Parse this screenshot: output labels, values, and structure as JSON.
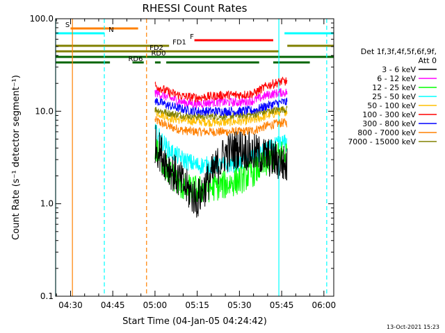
{
  "chart_data": {
    "type": "line",
    "title": "RHESSI Count Rates",
    "xlabel": "Start Time (04-Jan-05 04:24:42)",
    "ylabel": "Count Rate (s⁻¹ detector segment⁻¹)",
    "y_scale": "log",
    "ylim": [
      0.1,
      100.0
    ],
    "xlim": [
      "04:24:42",
      "06:03:30"
    ],
    "x_ticks": [
      "04:30",
      "04:45",
      "05:00",
      "05:15",
      "05:30",
      "05:45",
      "06:00"
    ],
    "y_ticks": [
      "0.1",
      "1.0",
      "10.0",
      "100.0"
    ],
    "grid": false,
    "legend_position": "right",
    "legend_header": [
      "Det 1f,3f,4f,5f,6f,9f,",
      "Att 0"
    ],
    "timestamp": "13-Oct-2021 15:23",
    "series": [
      {
        "name": "3 - 6 keV",
        "color": "#000000",
        "x": [
          "05:00",
          "05:05",
          "05:10",
          "05:15",
          "05:20",
          "05:25",
          "05:30",
          "05:35",
          "05:40",
          "05:45",
          "05:47"
        ],
        "values": [
          4.5,
          2.5,
          1.6,
          1.1,
          2.0,
          3.5,
          4.0,
          3.5,
          3.2,
          2.8,
          2.5
        ]
      },
      {
        "name": "6 - 12 keV",
        "color": "#ff00ff",
        "x": [
          "05:00",
          "05:05",
          "05:10",
          "05:15",
          "05:20",
          "05:25",
          "05:30",
          "05:35",
          "05:40",
          "05:45",
          "05:47"
        ],
        "values": [
          16,
          14,
          12.5,
          12,
          12.5,
          12.5,
          12.5,
          13,
          15,
          16,
          16
        ]
      },
      {
        "name": "12 - 25 keV",
        "color": "#00ff00",
        "x": [
          "05:00",
          "05:05",
          "05:10",
          "05:15",
          "05:20",
          "05:25",
          "05:30",
          "05:35",
          "05:40",
          "05:45",
          "05:47"
        ],
        "values": [
          4.0,
          2.2,
          1.5,
          1.4,
          1.5,
          1.6,
          1.8,
          2.2,
          2.8,
          3.5,
          3.6
        ]
      },
      {
        "name": "25 - 50 keV",
        "color": "#00ffff",
        "x": [
          "05:00",
          "05:05",
          "05:10",
          "05:15",
          "05:20",
          "05:25",
          "05:30",
          "05:35",
          "05:40",
          "05:45",
          "05:47"
        ],
        "values": [
          6.0,
          3.8,
          3.0,
          2.6,
          2.6,
          2.6,
          2.8,
          3.2,
          3.8,
          4.5,
          4.5
        ]
      },
      {
        "name": "50 - 100 keV",
        "color": "#ffbf00",
        "x": [
          "05:00",
          "05:05",
          "05:10",
          "05:15",
          "05:20",
          "05:25",
          "05:30",
          "05:35",
          "05:40",
          "05:45",
          "05:47"
        ],
        "values": [
          10,
          8.5,
          8.0,
          7.8,
          7.6,
          7.6,
          7.8,
          8.0,
          9.0,
          10,
          10
        ]
      },
      {
        "name": "100 - 300 keV",
        "color": "#ff0000",
        "x": [
          "05:00",
          "05:05",
          "05:10",
          "05:15",
          "05:20",
          "05:25",
          "05:30",
          "05:35",
          "05:40",
          "05:45",
          "05:47"
        ],
        "values": [
          19,
          16,
          14.5,
          14,
          14.5,
          15,
          15,
          15.5,
          19,
          21,
          21
        ]
      },
      {
        "name": "300 - 800 keV",
        "color": "#0000ff",
        "x": [
          "05:00",
          "05:05",
          "05:10",
          "05:15",
          "05:20",
          "05:25",
          "05:30",
          "05:35",
          "05:40",
          "05:45",
          "05:47"
        ],
        "values": [
          13,
          11.5,
          10.5,
          10,
          10,
          10,
          10,
          10.2,
          11.5,
          12.5,
          12.5
        ]
      },
      {
        "name": "800 - 7000 keV",
        "color": "#ff8000",
        "x": [
          "05:00",
          "05:05",
          "05:10",
          "05:15",
          "05:20",
          "05:25",
          "05:30",
          "05:35",
          "05:40",
          "05:45",
          "05:47"
        ],
        "values": [
          8.0,
          6.8,
          6.2,
          6.0,
          6.0,
          6.0,
          6.0,
          6.2,
          7.0,
          7.5,
          7.5
        ]
      },
      {
        "name": "7000 - 15000 keV",
        "color": "#808000",
        "x": [
          "05:00",
          "05:05",
          "05:10",
          "05:15",
          "05:20",
          "05:25",
          "05:30",
          "05:35",
          "05:40",
          "05:45",
          "05:47"
        ],
        "values": [
          10.5,
          9.5,
          9.0,
          8.8,
          8.8,
          8.8,
          9.0,
          9.2,
          10,
          10.5,
          10.5
        ]
      }
    ],
    "flag_bars": [
      {
        "label": "S",
        "color": "#ff8000",
        "segments": [
          [
            "04:30",
            "04:54"
          ]
        ]
      },
      {
        "label": "N",
        "color": "#00ffff",
        "segments": [
          [
            "04:24:42",
            "04:42"
          ],
          [
            "05:46",
            "06:03:30"
          ]
        ]
      },
      {
        "label": "F",
        "color": "#ff0000",
        "segments": [
          [
            "05:14",
            "05:42"
          ]
        ]
      },
      {
        "label": "FD1",
        "color": "#808000",
        "segments": [
          [
            "04:24:42",
            "05:05"
          ],
          [
            "05:47",
            "06:03:30"
          ]
        ]
      },
      {
        "label": "FD2",
        "color": "#808000",
        "segments": [
          [
            "04:24:42",
            "05:44"
          ]
        ]
      },
      {
        "label": "RD0",
        "color": "#006400",
        "segments": [
          [
            "04:24:42",
            "06:03:30"
          ]
        ]
      },
      {
        "label": "RD6",
        "color": "#006400",
        "segments": [
          [
            "04:24:42",
            "04:44"
          ],
          [
            "04:52",
            "04:56"
          ],
          [
            "05:00",
            "05:02"
          ],
          [
            "05:04",
            "05:37"
          ],
          [
            "05:42",
            "05:55"
          ]
        ]
      }
    ],
    "vertical_markers": [
      {
        "x": "04:24:42",
        "color": "#00ffff",
        "style": "solid"
      },
      {
        "x": "04:30:40",
        "color": "#ff8000",
        "style": "solid"
      },
      {
        "x": "04:42",
        "color": "#00ffff",
        "style": "dashed"
      },
      {
        "x": "04:57",
        "color": "#ff8000",
        "style": "dashed"
      },
      {
        "x": "05:44",
        "color": "#00ffff",
        "style": "solid"
      },
      {
        "x": "06:01",
        "color": "#00ffff",
        "style": "dashed"
      }
    ]
  }
}
